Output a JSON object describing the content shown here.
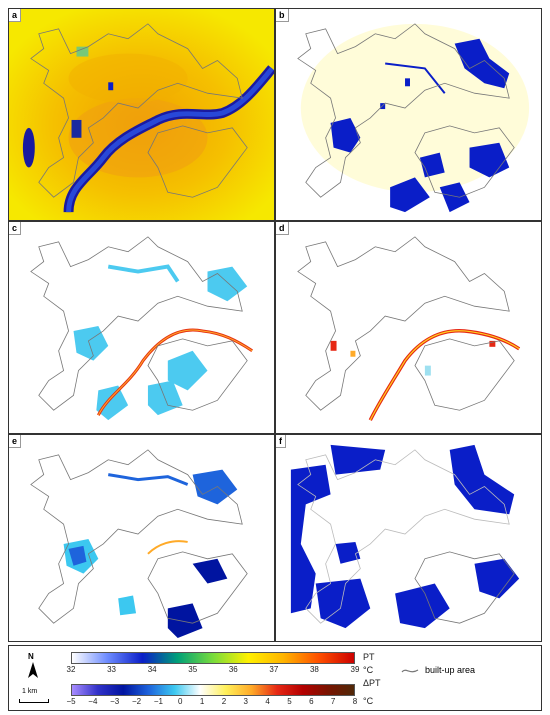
{
  "panels": [
    {
      "id": "a",
      "label": "a"
    },
    {
      "id": "b",
      "label": "b"
    },
    {
      "id": "c",
      "label": "c"
    },
    {
      "id": "d",
      "label": "d"
    },
    {
      "id": "e",
      "label": "e"
    },
    {
      "id": "f",
      "label": "f"
    }
  ],
  "legend": {
    "north_label": "N",
    "scale_label": "1 km",
    "pt": {
      "unit_name": "PT",
      "unit": "°C",
      "ticks": [
        "32",
        "33",
        "34",
        "35",
        "36",
        "37",
        "38",
        "39"
      ],
      "colors": [
        "#ffffff",
        "#6e8cff",
        "#0a1ec8",
        "#00a078",
        "#78dc3c",
        "#fff000",
        "#ffb400",
        "#ff5000",
        "#cc0000"
      ]
    },
    "dpt": {
      "unit_name": "ΔPT",
      "unit": "°C",
      "ticks": [
        "−5",
        "−4",
        "−3",
        "−2",
        "−1",
        "0",
        "1",
        "2",
        "3",
        "4",
        "5",
        "6",
        "7",
        "8"
      ],
      "colors": [
        "#a88cff",
        "#3232c8",
        "#0014a0",
        "#1e64dc",
        "#3cc8f0",
        "#ffffff",
        "#fff05a",
        "#ffaa28",
        "#e62814",
        "#b40000",
        "#781400",
        "#502808"
      ]
    },
    "builtup_label": "built-up area"
  }
}
